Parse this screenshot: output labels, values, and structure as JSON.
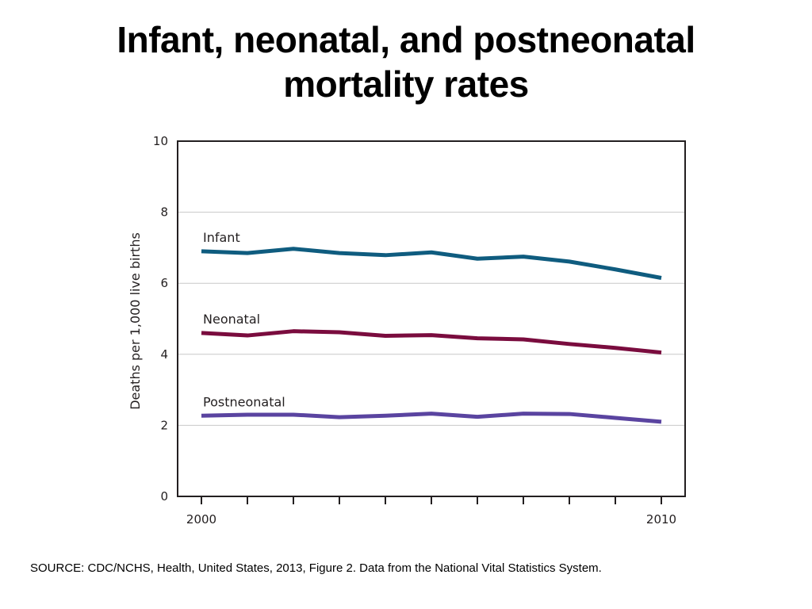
{
  "slide": {
    "title_line1": "Infant, neonatal, and postneonatal",
    "title_line2": "mortality rates",
    "source": "SOURCE: CDC/NCHS, Health, United States, 2013, Figure 2. Data from the National Vital Statistics System."
  },
  "chart_data": {
    "type": "line",
    "ylabel": "Deaths per 1,000 live births",
    "xlabel": "",
    "xlim": [
      2000,
      2010
    ],
    "ylim": [
      0,
      10
    ],
    "x_tick_labels": [
      "2000",
      "2010"
    ],
    "y_tick_labels": [
      "0",
      "2",
      "4",
      "6",
      "8",
      "10"
    ],
    "grid": "horizontal",
    "x": [
      2000,
      2001,
      2002,
      2003,
      2004,
      2005,
      2006,
      2007,
      2008,
      2009,
      2010
    ],
    "series": [
      {
        "name": "Infant",
        "color": "#0f5c7f",
        "values": [
          6.9,
          6.85,
          6.97,
          6.85,
          6.79,
          6.87,
          6.69,
          6.75,
          6.61,
          6.39,
          6.15
        ]
      },
      {
        "name": "Neonatal",
        "color": "#7a0c3e",
        "values": [
          4.6,
          4.53,
          4.65,
          4.62,
          4.52,
          4.54,
          4.45,
          4.42,
          4.29,
          4.18,
          4.05
        ]
      },
      {
        "name": "Postneonatal",
        "color": "#5a44a0",
        "values": [
          2.27,
          2.3,
          2.3,
          2.23,
          2.27,
          2.33,
          2.24,
          2.33,
          2.32,
          2.21,
          2.1
        ]
      }
    ]
  }
}
